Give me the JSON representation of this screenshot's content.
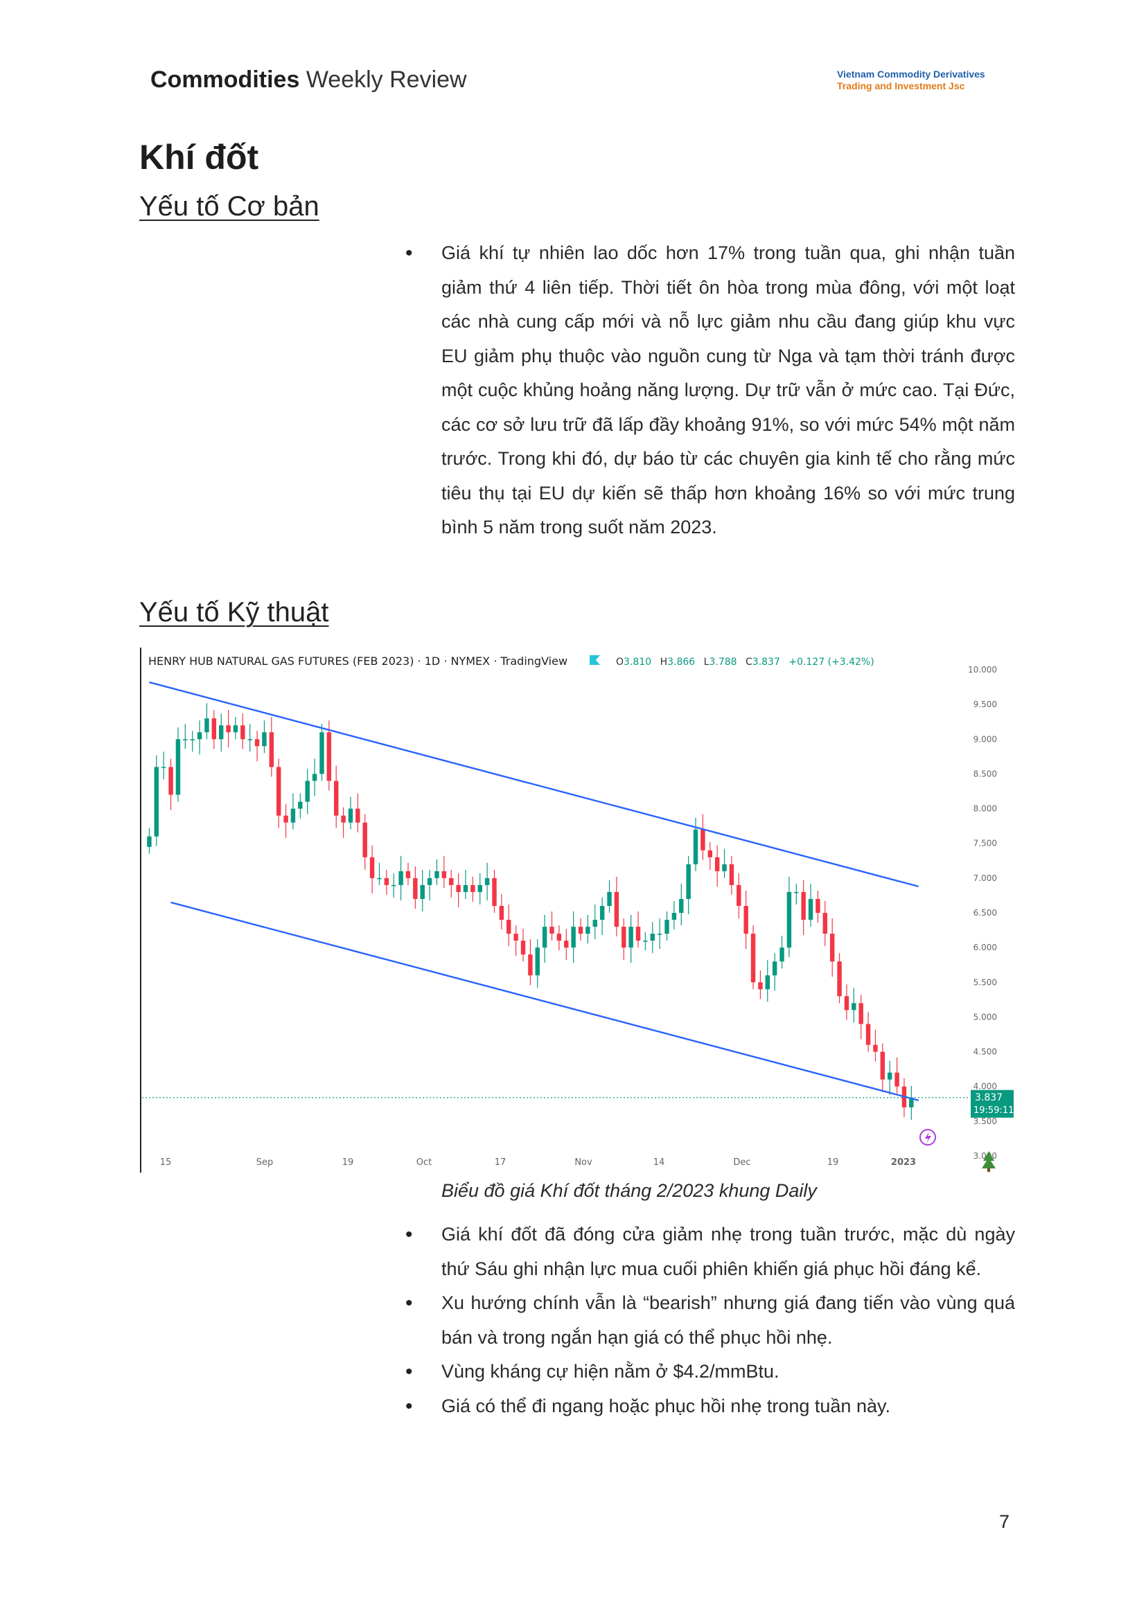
{
  "header": {
    "title_bold": "Commodities",
    "title_rest": "Weekly Review",
    "logo_line1": "Vietnam Commodity Derivatives",
    "logo_line2": "Trading and Investment Jsc"
  },
  "section_title": "Khí đốt",
  "fundamentals": {
    "heading": "Yếu tố Cơ bản",
    "bullets": [
      "Giá khí tự nhiên lao dốc hơn 17% trong tuần qua, ghi nhận tuần giảm thứ 4 liên tiếp. Thời tiết ôn hòa trong mùa đông, với một loạt các nhà cung cấp mới và nỗ lực giảm nhu cầu đang giúp khu vực EU giảm phụ thuộc vào nguồn cung từ Nga và tạm thời tránh được một cuộc khủng hoảng năng lượng. Dự trữ vẫn ở mức cao. Tại Đức, các cơ sở lưu trữ đã lấp đầy khoảng 91%, so với mức 54% một năm trước. Trong khi đó, dự báo từ các chuyên gia kinh tế cho rằng mức tiêu thụ tại EU dự kiến sẽ thấp hơn khoảng 16% so với mức trung bình 5 năm trong suốt năm 2023."
    ]
  },
  "technical": {
    "heading": "Yếu tố Kỹ thuật",
    "caption": "Biểu đồ giá Khí đốt tháng 2/2023 khung Daily",
    "bullets": [
      "Giá khí đốt đã đóng cửa giảm nhẹ trong tuần trước, mặc dù ngày thứ Sáu ghi nhận lực mua cuối phiên khiến giá phục hồi đáng kể.",
      "Xu hướng chính vẫn là “bearish” nhưng giá đang tiến vào vùng quá bán và trong ngắn hạn giá có thể phục hồi nhẹ.",
      "Vùng kháng cự hiện nằm ở $4.2/mmBtu.",
      "Giá có thể đi ngang hoặc phục hồi nhẹ trong tuần này."
    ]
  },
  "chart_data": {
    "type": "candlestick",
    "title": "HENRY HUB NATURAL GAS FUTURES (FEB 2023) · 1D · NYMEX · TradingView",
    "ohlc_text": {
      "o_label": "O",
      "o": "3.810",
      "h_label": "H",
      "h": "3.866",
      "l_label": "L",
      "l": "3.788",
      "c_label": "C",
      "c": "3.837",
      "change": "+0.127 (+3.42%)"
    },
    "price_label": "3.837",
    "countdown": "19:59:11",
    "yticks": [
      "10.000",
      "9.500",
      "9.000",
      "8.500",
      "8.000",
      "7.500",
      "7.000",
      "6.500",
      "6.000",
      "5.500",
      "5.000",
      "4.500",
      "4.000",
      "3.500",
      "3.000"
    ],
    "ylim": [
      3.0,
      10.0
    ],
    "xticks": [
      "15",
      "Sep",
      "19",
      "Oct",
      "17",
      "Nov",
      "14",
      "Dec",
      "19",
      "2023"
    ],
    "trendlines": [
      {
        "from": [
          0,
          9.82
        ],
        "to": [
          107,
          6.88
        ]
      },
      {
        "from": [
          3,
          6.65
        ],
        "to": [
          107,
          3.8
        ]
      }
    ],
    "closes": [
      7.6,
      8.6,
      8.6,
      8.2,
      9.0,
      9.0,
      9.0,
      9.1,
      9.3,
      9.0,
      9.2,
      9.1,
      9.2,
      9.0,
      9.0,
      8.9,
      9.1,
      8.6,
      7.9,
      7.8,
      8.0,
      8.1,
      8.4,
      8.5,
      9.1,
      8.4,
      7.9,
      7.8,
      8.0,
      7.8,
      7.3,
      7.0,
      7.0,
      6.9,
      6.9,
      7.1,
      7.0,
      6.7,
      6.9,
      7.0,
      7.1,
      7.0,
      6.9,
      6.8,
      6.9,
      6.8,
      6.9,
      7.0,
      6.6,
      6.4,
      6.2,
      6.1,
      5.9,
      5.6,
      6.0,
      6.3,
      6.2,
      6.1,
      6.0,
      6.3,
      6.2,
      6.3,
      6.4,
      6.6,
      6.8,
      6.3,
      6.0,
      6.3,
      6.1,
      6.1,
      6.2,
      6.2,
      6.4,
      6.5,
      6.7,
      7.2,
      7.7,
      7.4,
      7.3,
      7.1,
      7.2,
      6.9,
      6.6,
      6.2,
      5.5,
      5.4,
      5.6,
      5.8,
      6.0,
      6.8,
      6.8,
      6.4,
      6.7,
      6.5,
      6.2,
      5.8,
      5.3,
      5.1,
      5.2,
      4.9,
      4.6,
      4.5,
      4.1,
      4.2,
      4.0,
      3.7,
      3.84
    ]
  },
  "page_number": "7"
}
